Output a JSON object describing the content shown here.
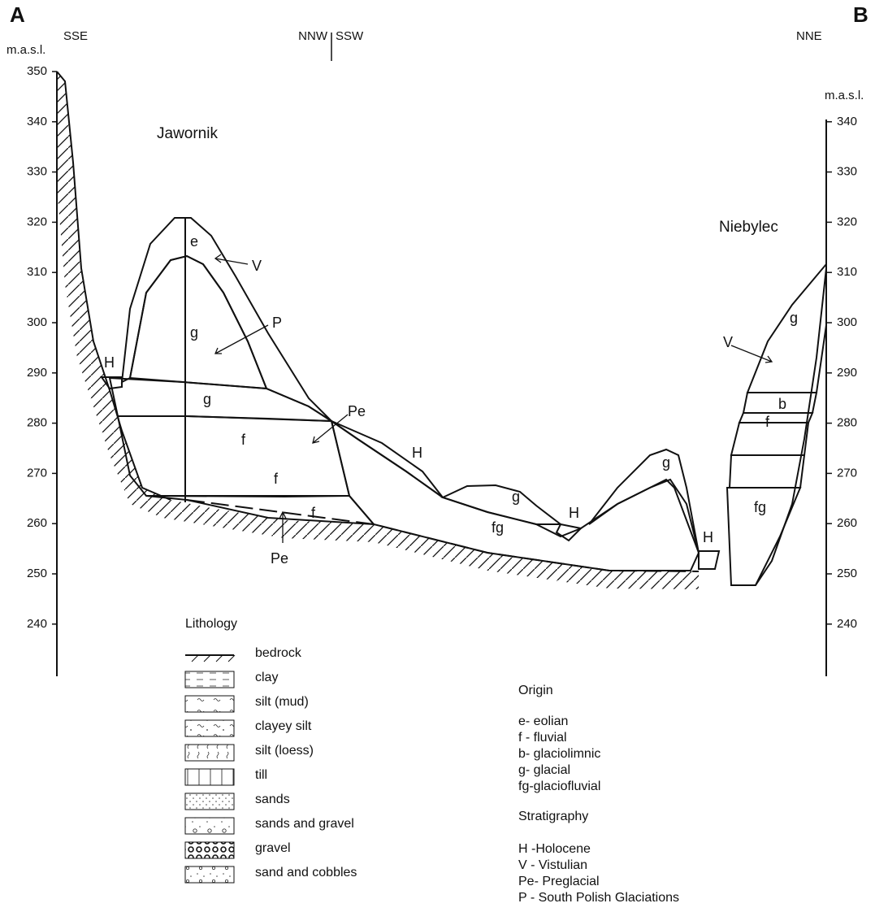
{
  "corners": {
    "left": "A",
    "right": "B"
  },
  "directions": {
    "left": "SSE",
    "center_left": "NNW",
    "center_right": "SSW",
    "right": "NNE"
  },
  "left_axis": {
    "label": "m.a.s.l.",
    "ticks": [
      350,
      340,
      330,
      320,
      310,
      300,
      290,
      280,
      270,
      260,
      250,
      240
    ]
  },
  "right_axis": {
    "label": "m.a.s.l.",
    "ticks": [
      340,
      330,
      320,
      310,
      300,
      290,
      280,
      270,
      260,
      250,
      240
    ]
  },
  "places": [
    "Jawornik",
    "Niebylec"
  ],
  "unit_labels": [
    "e",
    "V",
    "g",
    "P",
    "H",
    "g",
    "f",
    "f",
    "Pe",
    "f",
    "Pe",
    "H",
    "g",
    "fg",
    "H",
    "g",
    "H",
    "V",
    "g",
    "b",
    "f",
    "fg"
  ],
  "lithology": {
    "title": "Lithology",
    "items": [
      "bedrock",
      "clay",
      "silt (mud)",
      "clayey silt",
      "silt (loess)",
      "till",
      "sands",
      "sands and gravel",
      "gravel",
      "sand and cobbles"
    ]
  },
  "origin": {
    "title": "Origin",
    "items": [
      "e- eolian",
      "f - fluvial",
      "b- glaciolimnic",
      "g- glacial",
      "fg-glaciofluvial"
    ]
  },
  "stratigraphy": {
    "title": "Stratigraphy",
    "items": [
      "H -Holocene",
      "V - Vistulian",
      "Pe- Preglacial",
      "P - South Polish Glaciations"
    ]
  }
}
